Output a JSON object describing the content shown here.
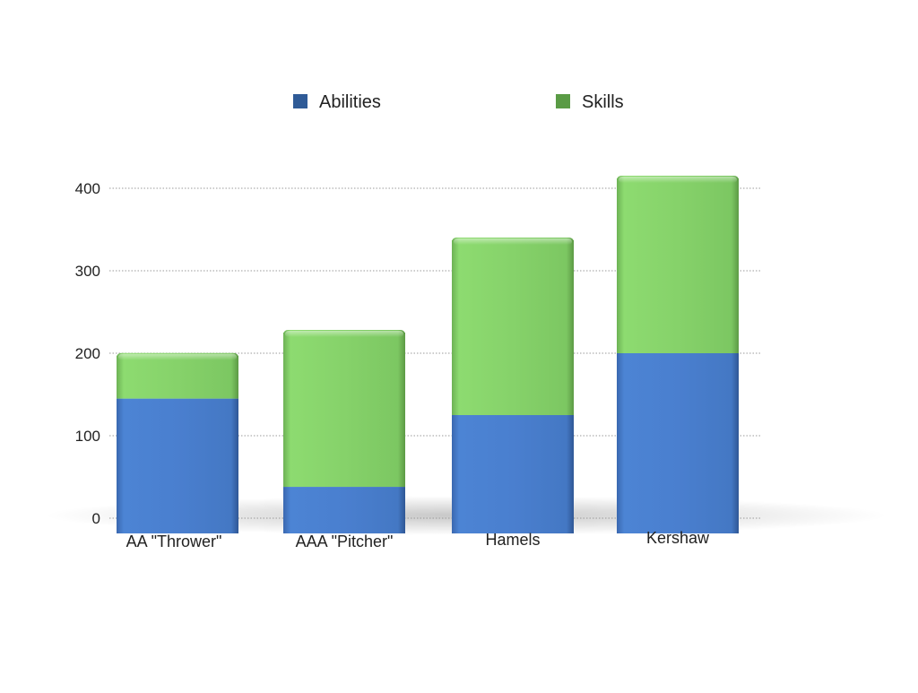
{
  "chart_data": {
    "type": "bar",
    "stacked": true,
    "categories": [
      "AA \"Thrower\"",
      "AAA \"Pitcher\"",
      "Hamels",
      "Kershaw"
    ],
    "series": [
      {
        "name": "Abilities",
        "values": [
          145,
          38,
          125,
          200
        ],
        "color": "#4a7fcf"
      },
      {
        "name": "Skills",
        "values": [
          52,
          187,
          212,
          212
        ],
        "color": "#86d26a"
      }
    ],
    "ylim": [
      0,
      400
    ],
    "yticks": [
      "0",
      "100",
      "200",
      "300",
      "400"
    ],
    "ytick_values": [
      0,
      100,
      200,
      300,
      400
    ],
    "grid": true,
    "legend_position": "top-center"
  }
}
